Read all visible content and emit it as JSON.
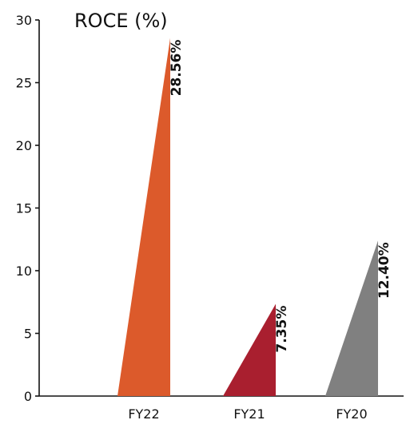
{
  "chart_data": {
    "type": "bar",
    "title": "ROCE (%)",
    "xlabel": "",
    "ylabel": "",
    "categories": [
      "FY22",
      "FY21",
      "FY20"
    ],
    "values": [
      28.56,
      7.35,
      12.4
    ],
    "data_labels": [
      "28.56%",
      "7.35%",
      "12.40%"
    ],
    "colors": [
      "#dc5a2b",
      "#a91f2f",
      "#808080"
    ],
    "ylim": [
      0,
      30
    ],
    "yticks": [
      0,
      5,
      10,
      15,
      20,
      25,
      30
    ],
    "ytick_labels": [
      "0",
      "5",
      "10",
      "15",
      "20",
      "25",
      "30"
    ],
    "grid": false,
    "legend": "none",
    "bar_shape": "right-triangle"
  }
}
